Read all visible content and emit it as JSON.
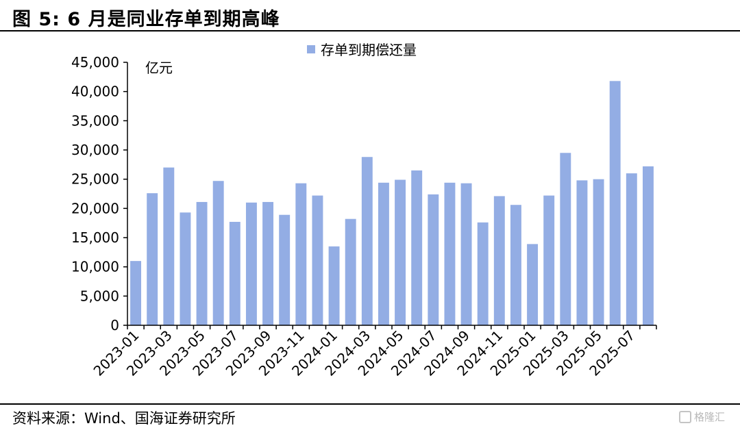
{
  "figure": {
    "title": "图 5:  6 月是同业存单到期高峰",
    "source": "资料来源：Wind、国海证券研究所",
    "watermark": "格隆汇"
  },
  "chart_data": {
    "type": "bar",
    "title": "",
    "xlabel": "",
    "ylabel": "亿元",
    "ylim": [
      0,
      45000
    ],
    "yticks": [
      "0",
      "5,000",
      "10,000",
      "15,000",
      "20,000",
      "25,000",
      "30,000",
      "35,000",
      "40,000",
      "45,000"
    ],
    "ytick_values": [
      0,
      5000,
      10000,
      15000,
      20000,
      25000,
      30000,
      35000,
      40000,
      45000
    ],
    "legend": {
      "position": "top-center",
      "entries": [
        "存单到期偿还量"
      ]
    },
    "grid": false,
    "bar_color": "#93ade4",
    "categories": [
      "2023-01",
      "2023-02",
      "2023-03",
      "2023-04",
      "2023-05",
      "2023-06",
      "2023-07",
      "2023-08",
      "2023-09",
      "2023-10",
      "2023-11",
      "2023-12",
      "2024-01",
      "2024-02",
      "2024-03",
      "2024-04",
      "2024-05",
      "2024-06",
      "2024-07",
      "2024-08",
      "2024-09",
      "2024-10",
      "2024-11",
      "2024-12",
      "2025-01",
      "2025-02",
      "2025-03",
      "2025-04",
      "2025-05",
      "2025-06",
      "2025-07",
      "2025-08"
    ],
    "xtick_labels": [
      "2023-01",
      "2023-03",
      "2023-05",
      "2023-07",
      "2023-09",
      "2023-11",
      "2024-01",
      "2024-03",
      "2024-05",
      "2024-07",
      "2024-09",
      "2024-11",
      "2025-01",
      "2025-03",
      "2025-05",
      "2025-07"
    ],
    "series": [
      {
        "name": "存单到期偿还量",
        "values": [
          11000,
          22600,
          27000,
          19300,
          21100,
          24700,
          17700,
          21000,
          21100,
          18900,
          24300,
          22200,
          13500,
          18200,
          28800,
          24400,
          24900,
          26500,
          22400,
          24400,
          24300,
          17600,
          22100,
          20600,
          13900,
          22200,
          29500,
          24800,
          25000,
          41800,
          26000,
          27200
        ]
      }
    ]
  }
}
